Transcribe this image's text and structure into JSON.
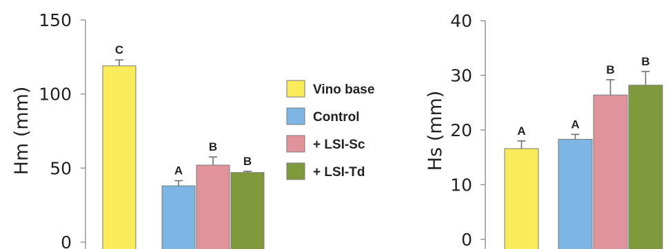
{
  "colors": {
    "Vino base": "#f9eb5a",
    "Control": "#7eb6e3",
    "+ LSI-Sc": "#e0939a",
    "+ LSI-Td": "#7e9a3c"
  },
  "legend": {
    "position": "center",
    "items": [
      "Vino base",
      "Control",
      "+ LSI-Sc",
      "+ LSI-Td"
    ]
  },
  "chart_data": [
    {
      "type": "bar",
      "ylabel": "Hm (mm)",
      "ylim": [
        0,
        150
      ],
      "yticks": [
        "0",
        "50",
        "100",
        "150"
      ],
      "grid": false,
      "categories": [
        "Vino base",
        "Control",
        "+ LSI-Sc",
        "+ LSI-Td"
      ],
      "values": [
        119,
        38,
        52,
        47
      ],
      "errors": [
        4,
        3.5,
        5.5,
        0.8
      ],
      "labels": [
        "C",
        "A",
        "B",
        "B"
      ]
    },
    {
      "type": "bar",
      "ylabel": "Hs (mm)",
      "ylim": [
        0,
        40
      ],
      "yticks": [
        "0",
        "10",
        "20",
        "30",
        "40"
      ],
      "grid": false,
      "categories": [
        "Vino base",
        "Control",
        "+ LSI-Sc",
        "+ LSI-Td"
      ],
      "values": [
        16.6,
        18.3,
        26.4,
        28.2
      ],
      "errors": [
        1.4,
        0.9,
        2.8,
        2.5
      ],
      "labels": [
        "A",
        "A",
        "B",
        "B"
      ]
    }
  ]
}
